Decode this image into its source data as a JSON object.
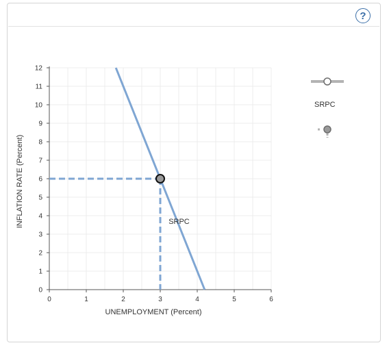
{
  "help_button": {
    "icon": "question-icon",
    "label": "?"
  },
  "palette": {
    "tools": [
      {
        "name": "line-drawing-tool",
        "label": "SRPC"
      },
      {
        "name": "point-drawing-tool",
        "label": ""
      }
    ]
  },
  "chart_data": {
    "type": "line",
    "xlabel": "UNEMPLOYMENT (Percent)",
    "ylabel": "INFLATION RATE (Percent)",
    "xlim": [
      0,
      6
    ],
    "ylim": [
      0,
      12
    ],
    "x_ticks": [
      "0",
      "1",
      "2",
      "3",
      "4",
      "5",
      "6"
    ],
    "y_ticks": [
      "0",
      "1",
      "2",
      "3",
      "4",
      "5",
      "6",
      "7",
      "8",
      "9",
      "10",
      "11",
      "12"
    ],
    "grid": true,
    "series": [
      {
        "name": "SRPC",
        "points": [
          [
            1.8,
            12
          ],
          [
            4.2,
            0
          ]
        ],
        "color": "#7fa6d3"
      }
    ],
    "point": {
      "x": 3,
      "y": 6
    },
    "dashed_guides": true,
    "label_text": "SRPC",
    "label_position": {
      "x": 3.3,
      "y": 3.6
    }
  }
}
